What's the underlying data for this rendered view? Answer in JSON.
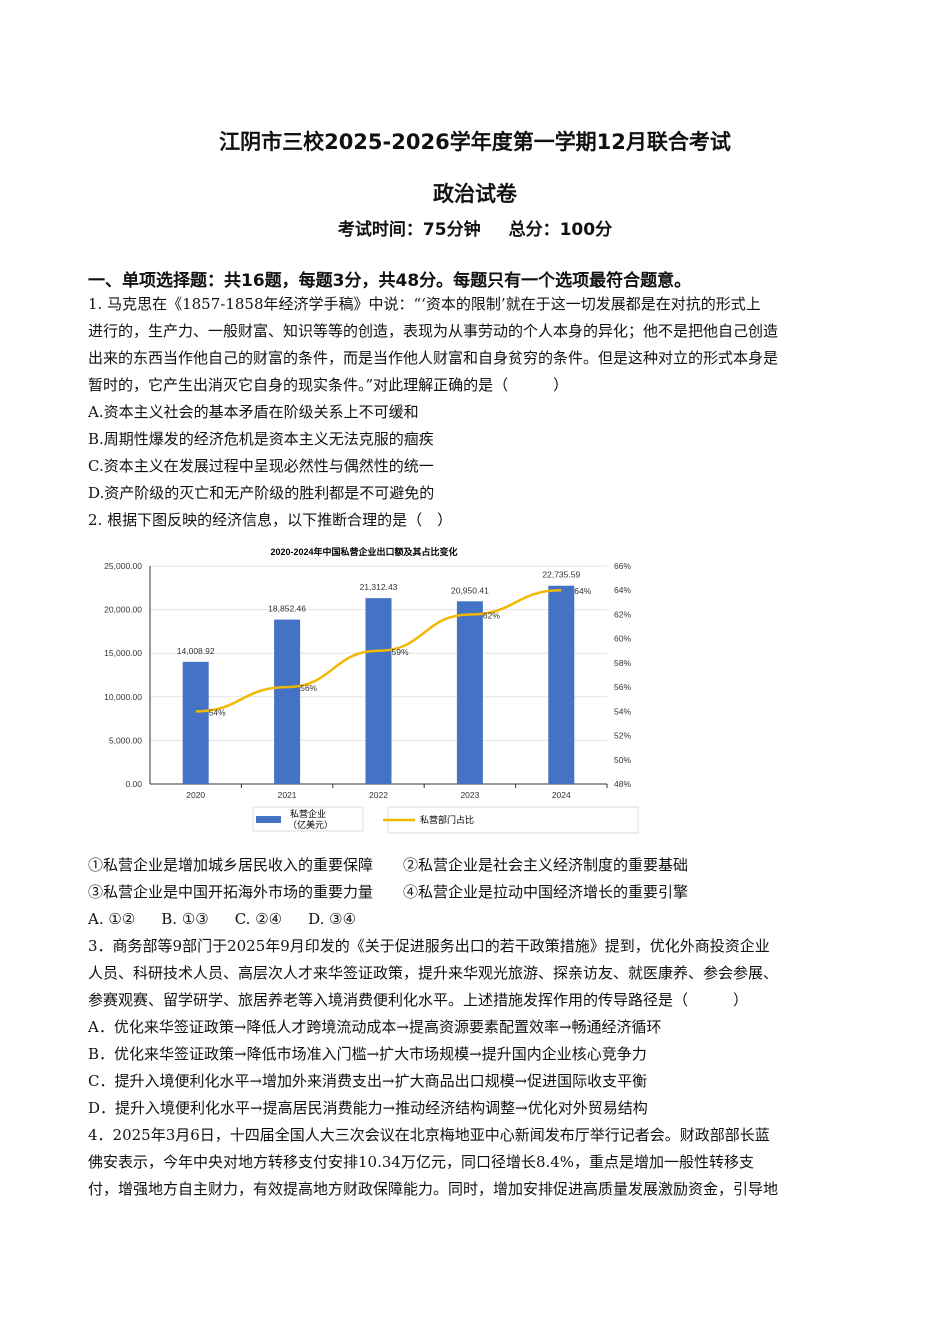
{
  "header": {
    "title": "江阴市三校2025-2026学年度第一学期12月联合考试",
    "subject": "政治试卷",
    "time": "考试时间：75分钟",
    "score": "总分：100分"
  },
  "section": "一、单项选择题：共16题，每题3分，共48分。每题只有一个选项最符合题意。",
  "q1": {
    "lines": [
      "1. 马克思在《1857-1858年经济学手稿》中说：“‘资本的限制’就在于这一切发展都是在对抗的形式上",
      "进行的，生产力、一般财富、知识等等的创造，表现为从事劳动的个人本身的异化；他不是把他自己创造",
      "出来的东西当作他自己的财富的条件，而是当作他人财富和自身贫穷的条件。但是这种对立的形式本身是",
      "暂时的，它产生出消灭它自身的现实条件。”对此理解正确的是（　　　）"
    ],
    "options": [
      "A.资本主义社会的基本矛盾在阶级关系上不可缓和",
      "B.周期性爆发的经济危机是资本主义无法克服的痼疾",
      "C.资本主义在发展过程中呈现必然性与偶然性的统一",
      "D.资产阶级的灭亡和无产阶级的胜利都是不可避免的"
    ]
  },
  "q2": {
    "stem": "2. 根据下图反映的经济信息，以下推断合理的是（　）",
    "statements": [
      "①私营企业是增加城乡居民收入的重要保障",
      "②私营企业是社会主义经济制度的重要基础",
      "③私营企业是中国开拓海外市场的重要力量",
      "④私营企业是拉动中国经济增长的重要引擎"
    ],
    "options": [
      "A. ①②",
      "B. ①③",
      "C. ②④",
      "D. ③④"
    ]
  },
  "chart_data": {
    "type": "bar+line",
    "title": "2020-2024年中国私营企业出口额及其占比变化",
    "categories": [
      "2020",
      "2021",
      "2022",
      "2023",
      "2024"
    ],
    "series": [
      {
        "name": "私营企业（亿美元）",
        "type": "bar",
        "axis": "left",
        "values": [
          14008.92,
          18852.46,
          21312.43,
          20950.41,
          22735.59
        ],
        "labels": [
          "14,008.92",
          "18,852.46",
          "21,312.43",
          "20,950.41",
          "22,735.59"
        ],
        "color": "#4472c4"
      },
      {
        "name": "私营部门占比",
        "type": "line",
        "axis": "right",
        "values": [
          54,
          56,
          59,
          62,
          64
        ],
        "labels": [
          "54%",
          "56%",
          "59%",
          "62%",
          "64%"
        ],
        "color": "#f2b800"
      }
    ],
    "left_axis": {
      "ylim": [
        0,
        25000
      ],
      "ticks": [
        "0.00",
        "5,000.00",
        "10,000.00",
        "15,000.00",
        "20,000.00",
        "25,000.00"
      ]
    },
    "right_axis": {
      "ylim": [
        48,
        66
      ],
      "ticks": [
        "48%",
        "50%",
        "52%",
        "54%",
        "56%",
        "58%",
        "60%",
        "62%",
        "64%",
        "66%"
      ]
    },
    "legend_position": "bottom",
    "grid": true
  },
  "q3": {
    "lines": [
      "3．商务部等9部门于2025年9月印发的《关于促进服务出口的若干政策措施》提到，优化外商投资企业",
      "人员、科研技术人员、高层次人才来华签证政策，提升来华观光旅游、探亲访友、就医康养、参会参展、",
      "参赛观赛、留学研学、旅居养老等入境消费便利化水平。上述措施发挥作用的传导路径是（　　　）"
    ],
    "options": [
      "A．优化来华签证政策→降低人才跨境流动成本→提高资源要素配置效率→畅通经济循环",
      "B．优化来华签证政策→降低市场准入门槛→扩大市场规模→提升国内企业核心竞争力",
      "C．提升入境便利化水平→增加外来消费支出→扩大商品出口规模→促进国际收支平衡",
      "D．提升入境便利化水平→提高居民消费能力→推动经济结构调整→优化对外贸易结构"
    ]
  },
  "q4": {
    "lines": [
      "4．2025年3月6日，十四届全国人大三次会议在北京梅地亚中心新闻发布厅举行记者会。财政部部长蓝",
      "佛安表示，今年中央对地方转移支付安排10.34万亿元，同口径增长8.4%，重点是增加一般性转移支",
      "付，增强地方自主财力，有效提高地方财政保障能力。同时，增加安排促进高质量发展激励资金，引导地"
    ]
  }
}
